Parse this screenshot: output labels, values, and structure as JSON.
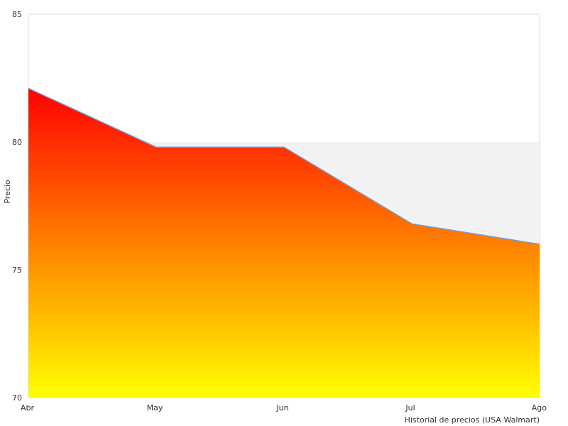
{
  "chart_data": {
    "type": "area",
    "title": "",
    "xlabel": "Historial de precios (USA Walmart)",
    "ylabel": "Precio",
    "categories": [
      "Abr",
      "May",
      "Jun",
      "Jul",
      "Ago"
    ],
    "series": [
      {
        "values": [
          82.1,
          79.8,
          79.8,
          76.8,
          76.0
        ]
      }
    ],
    "ylim": [
      70,
      85
    ],
    "yticks": [
      70,
      75,
      80,
      85
    ],
    "grid": "alternating horizontal bands",
    "line_color": "#6aa0e0",
    "fill_gradient_top": "#ff0000",
    "fill_gradient_bottom": "#ffff00",
    "band_color": "#f2f2f2"
  }
}
